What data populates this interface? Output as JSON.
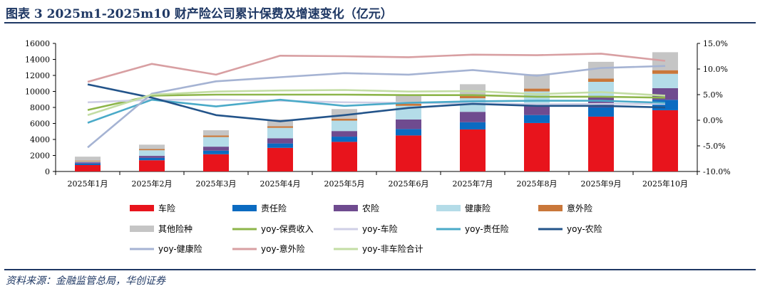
{
  "header": {
    "title": "图表 3   2025m1-2025m10 财产险公司累计保费及增速变化（亿元）"
  },
  "footer": {
    "source": "资料来源：金融监管总局，华创证券"
  },
  "colors": {
    "车险": "#e8141c",
    "责任险": "#0b6bc1",
    "农险": "#6f4b8f",
    "健康险": "#b4dce8",
    "意外险": "#c9773a",
    "其他险种": "#c5c5c5",
    "yoy-保费收入": "#8db54a",
    "yoy-车险": "#cfcfe6",
    "yoy-责任险": "#4aaac8",
    "yoy-农险": "#23548a",
    "yoy-健康险": "#a5b3d3",
    "yoy-意外险": "#d89fa2",
    "yoy-非车险合计": "#c3dda4"
  },
  "chart_data": {
    "type": "bar",
    "stacked": true,
    "categories": [
      "2025年1月",
      "2025年2月",
      "2025年3月",
      "2025年4月",
      "2025年5月",
      "2025年6月",
      "2025年7月",
      "2025年8月",
      "2025年9月",
      "2025年10月"
    ],
    "ylim": [
      0,
      16000
    ],
    "yticks": [
      "0",
      "2000",
      "4000",
      "6000",
      "8000",
      "10000",
      "12000",
      "14000",
      "16000"
    ],
    "y2lim": [
      -10,
      15
    ],
    "y2ticks": [
      "-10.0%",
      "-5.0%",
      "0.0%",
      "5.0%",
      "10.0%",
      "15.0%"
    ],
    "series": [
      {
        "name": "车险",
        "values": [
          800,
          1400,
          2150,
          2950,
          3700,
          4500,
          5250,
          6050,
          6850,
          7650
        ]
      },
      {
        "name": "责任险",
        "values": [
          200,
          300,
          450,
          550,
          650,
          800,
          900,
          1000,
          1150,
          1300
        ]
      },
      {
        "name": "农险",
        "values": [
          150,
          250,
          500,
          650,
          700,
          1200,
          1300,
          1350,
          1400,
          1450
        ]
      },
      {
        "name": "健康险",
        "values": [
          100,
          700,
          1200,
          1300,
          1300,
          1700,
          1700,
          1600,
          1800,
          1800
        ]
      },
      {
        "name": "意外险",
        "values": [
          100,
          150,
          200,
          200,
          250,
          300,
          300,
          350,
          400,
          450
        ]
      },
      {
        "name": "其他险种",
        "values": [
          500,
          550,
          650,
          850,
          1200,
          1100,
          1450,
          1800,
          2100,
          2250
        ]
      }
    ],
    "line_series": [
      {
        "name": "yoy-保费收入",
        "values": [
          2.0,
          4.8,
          5.0,
          5.0,
          5.0,
          4.9,
          4.9,
          4.6,
          4.6,
          4.4
        ]
      },
      {
        "name": "yoy-车险",
        "values": [
          3.5,
          4.0,
          4.0,
          3.8,
          3.5,
          3.4,
          3.3,
          3.1,
          3.2,
          3.2
        ]
      },
      {
        "name": "yoy-责任险",
        "values": [
          -0.5,
          4.0,
          2.7,
          4.0,
          2.8,
          3.4,
          3.7,
          3.8,
          3.8,
          3.4
        ]
      },
      {
        "name": "yoy-农险",
        "values": [
          7.0,
          4.4,
          1.0,
          -0.2,
          1.0,
          2.4,
          3.2,
          2.8,
          2.8,
          2.5
        ]
      },
      {
        "name": "yoy-健康险",
        "values": [
          -5.3,
          5.2,
          7.6,
          8.4,
          9.2,
          8.9,
          9.8,
          8.7,
          10.2,
          10.6
        ]
      },
      {
        "name": "yoy-意外险",
        "values": [
          7.5,
          11.0,
          8.9,
          12.6,
          12.5,
          12.3,
          12.8,
          12.7,
          13.0,
          11.6
        ]
      },
      {
        "name": "yoy-非车险合计",
        "values": [
          1.0,
          5.0,
          5.6,
          5.8,
          5.9,
          5.6,
          5.7,
          5.1,
          5.5,
          4.8
        ]
      }
    ]
  }
}
